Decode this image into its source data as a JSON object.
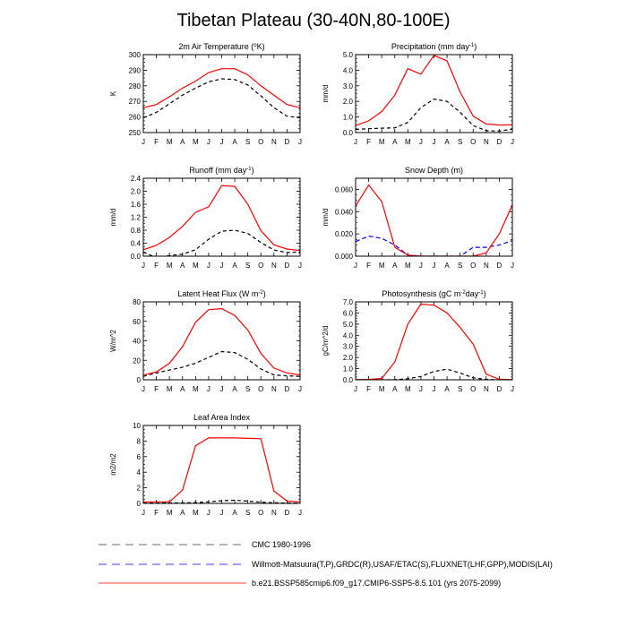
{
  "title": "Tibetan Plateau (30-40N,80-100E)",
  "months": [
    "J",
    "F",
    "M",
    "A",
    "M",
    "J",
    "J",
    "A",
    "S",
    "O",
    "N",
    "D",
    "J"
  ],
  "colors": {
    "model": "#ff0000",
    "cmc": "#000000",
    "obs": "#0000ff",
    "legend_cmc": "#888888",
    "legend_obs": "#6666ff",
    "legend_model": "#ff6666"
  },
  "legend": [
    {
      "key": "cmc",
      "label": "CMC 1980-1996"
    },
    {
      "key": "obs",
      "label": "Willmott-Matsuura(T,P),GRDC(R),USAF/ETAC(S),FLUXNET(LHF,GPP),MODIS(LAI)"
    },
    {
      "key": "model",
      "label": "b.e21.BSSP585cmip6.f09_g17.CMIP6-SSP5-8.5.101 (yrs 2075-2099)"
    }
  ],
  "chart_data": [
    {
      "type": "line",
      "title": "2m Air Temperature (°K)",
      "title_parts": [
        "2m Air Temperature (",
        "o",
        "K)"
      ],
      "ylabel": "K",
      "ylim": [
        250,
        300
      ],
      "yticks": [
        250,
        260,
        270,
        280,
        290,
        300
      ],
      "yticklabels": [
        "250",
        "260",
        "270",
        "280",
        "290",
        "300"
      ],
      "series": [
        {
          "key": "model",
          "values": [
            266,
            268,
            273,
            278.5,
            283,
            288.5,
            291,
            291,
            287,
            280,
            274,
            268,
            266
          ]
        },
        {
          "key": "cmc",
          "values": [
            259.5,
            263,
            268.5,
            274,
            278.5,
            282.5,
            284.5,
            284,
            280.5,
            273.5,
            266,
            260.5,
            259.5
          ]
        }
      ]
    },
    {
      "type": "line",
      "title": "Precipitation (mm day-1)",
      "title_parts": [
        "Precipitation (mm day",
        "-1",
        ")"
      ],
      "ylabel": "mm/d",
      "ylim": [
        0,
        5
      ],
      "yticks": [
        0,
        1,
        2,
        3,
        4,
        5
      ],
      "yticklabels": [
        "0.0",
        "1.0",
        "2.0",
        "3.0",
        "4.0",
        "5.0"
      ],
      "series": [
        {
          "key": "model",
          "values": [
            0.45,
            0.75,
            1.35,
            2.4,
            4.1,
            3.75,
            4.95,
            4.6,
            2.6,
            1.05,
            0.55,
            0.48,
            0.5
          ]
        },
        {
          "key": "cmc",
          "values": [
            0.2,
            0.25,
            0.28,
            0.3,
            0.65,
            1.6,
            2.15,
            2.0,
            1.3,
            0.45,
            0.12,
            0.1,
            0.22
          ]
        }
      ]
    },
    {
      "type": "line",
      "title": "Runoff (mm day-1)",
      "title_parts": [
        "Runoff (mm day",
        "-1",
        ")"
      ],
      "ylabel": "mm/d",
      "ylim": [
        0,
        2.4
      ],
      "yticks": [
        0,
        0.4,
        0.8,
        1.2,
        1.6,
        2.0,
        2.4
      ],
      "yticklabels": [
        "0.0",
        "0.4",
        "0.8",
        "1.2",
        "1.6",
        "2.0",
        "2.4"
      ],
      "series": [
        {
          "key": "model",
          "values": [
            0.2,
            0.33,
            0.58,
            0.92,
            1.35,
            1.52,
            2.17,
            2.15,
            1.6,
            0.78,
            0.35,
            0.22,
            0.17
          ]
        },
        {
          "key": "cmc",
          "values": [
            0.13,
            -0.05,
            0.02,
            0.06,
            0.2,
            0.52,
            0.77,
            0.8,
            0.7,
            0.42,
            0.19,
            0.11,
            0.13
          ]
        }
      ]
    },
    {
      "type": "line",
      "title": "Snow Depth (m)",
      "title_parts": [
        "Snow Depth (m)",
        "",
        ""
      ],
      "ylabel": "mm/d",
      "ylim": [
        0,
        0.07
      ],
      "yticks": [
        0,
        0.02,
        0.04,
        0.06
      ],
      "yticklabels": [
        "0.000",
        "0.020",
        "0.040",
        "0.060"
      ],
      "series": [
        {
          "key": "model",
          "values": [
            0.045,
            0.064,
            0.049,
            0.008,
            0.001,
            0.0,
            0.0,
            0.0,
            0.0,
            0.0,
            0.003,
            0.02,
            0.046
          ]
        },
        {
          "key": "obs",
          "values": [
            0.013,
            0.018,
            0.016,
            0.01,
            0.001,
            0.0,
            0.0,
            0.0,
            0.0,
            0.008,
            0.008,
            0.01,
            0.014
          ]
        }
      ]
    },
    {
      "type": "line",
      "title": "Latent Heat Flux (W m-2)",
      "title_parts": [
        "Latent Heat Flux (W m",
        "-2",
        ")"
      ],
      "ylabel": "W/m^2",
      "ylim": [
        0,
        80
      ],
      "yticks": [
        0,
        20,
        40,
        60,
        80
      ],
      "yticklabels": [
        "0",
        "20",
        "40",
        "60",
        "80"
      ],
      "series": [
        {
          "key": "model",
          "values": [
            5,
            8,
            17,
            34,
            59,
            72,
            73,
            66,
            51,
            27,
            12,
            7,
            5
          ]
        },
        {
          "key": "cmc",
          "values": [
            3.5,
            7,
            10,
            13,
            17,
            23,
            29,
            28,
            21,
            11,
            5,
            4,
            3.5
          ]
        }
      ]
    },
    {
      "type": "line",
      "title": "Photosynthesis (gC m-2day-1)",
      "title_parts": [
        "Photosynthesis (gC m",
        "-2",
        "day",
        "-1",
        ")"
      ],
      "ylabel": "gC/m^2/d",
      "ylim": [
        0,
        7
      ],
      "yticks": [
        0,
        1,
        2,
        3,
        4,
        5,
        6,
        7
      ],
      "yticklabels": [
        "0.0",
        "1.0",
        "2.0",
        "3.0",
        "4.0",
        "5.0",
        "6.0",
        "7.0"
      ],
      "series": [
        {
          "key": "model",
          "values": [
            0.02,
            0.03,
            0.12,
            1.6,
            5.0,
            6.8,
            6.7,
            6.0,
            4.7,
            3.2,
            0.5,
            0.05,
            0.02
          ]
        },
        {
          "key": "cmc",
          "values": [
            0.0,
            0.0,
            0.0,
            0.02,
            0.1,
            0.3,
            0.75,
            0.95,
            0.6,
            0.18,
            0.03,
            0.0,
            0.0
          ]
        }
      ]
    },
    {
      "type": "line",
      "title": "Leaf Area Index",
      "title_parts": [
        "Leaf Area Index",
        "",
        ""
      ],
      "ylabel": "m2/m2",
      "ylim": [
        0,
        10
      ],
      "yticks": [
        0,
        2,
        4,
        6,
        8,
        10
      ],
      "yticklabels": [
        "0",
        "2",
        "4",
        "6",
        "8",
        "10"
      ],
      "series": [
        {
          "key": "model",
          "values": [
            0.2,
            0.2,
            0.2,
            1.7,
            7.4,
            8.4,
            8.4,
            8.4,
            8.35,
            8.3,
            1.6,
            0.3,
            0.2
          ]
        },
        {
          "key": "cmc",
          "values": [
            0.05,
            0.05,
            0.05,
            0.07,
            0.1,
            0.2,
            0.35,
            0.4,
            0.3,
            0.15,
            0.08,
            0.05,
            0.05
          ]
        }
      ]
    }
  ]
}
